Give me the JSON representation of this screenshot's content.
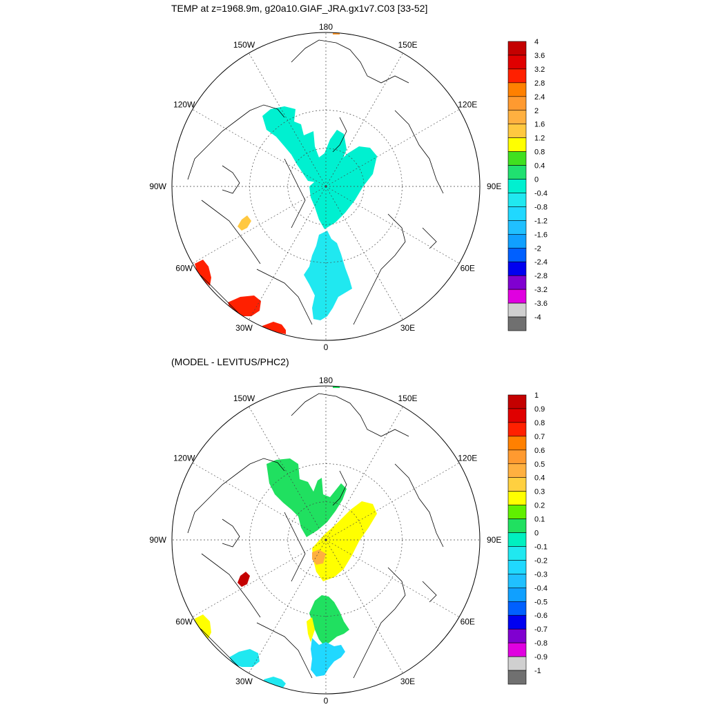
{
  "chart_data": [
    {
      "type": "heatmap",
      "projection": "north-polar-stereographic",
      "title": "TEMP at z=1968.9m, g20a10.GIAF_JRA.gx1v7.C03 [33-52]",
      "longitude_labels": [
        "180",
        "150E",
        "120E",
        "90E",
        "60E",
        "30E",
        "0",
        "30W",
        "60W",
        "90W",
        "120W",
        "150W"
      ],
      "colorbar": {
        "labels": [
          "4",
          "3.6",
          "3.2",
          "2.8",
          "2.4",
          "2",
          "1.6",
          "1.2",
          "0.8",
          "0.4",
          "0",
          "-0.4",
          "-0.8",
          "-1.2",
          "-1.6",
          "-2",
          "-2.4",
          "-2.8",
          "-3.2",
          "-3.6",
          "-4"
        ],
        "colors": [
          "#c40000",
          "#e00000",
          "#ff2000",
          "#ff8000",
          "#ff9a30",
          "#ffb040",
          "#ffc840",
          "#ffff00",
          "#40e020",
          "#20e070",
          "#00f0d0",
          "#20e8f0",
          "#20d8ff",
          "#20c0ff",
          "#10a0ff",
          "#0060ff",
          "#0000f0",
          "#8000d0",
          "#e000e0",
          "#d0d0d0",
          "#707070"
        ]
      }
    },
    {
      "type": "heatmap",
      "projection": "north-polar-stereographic",
      "title": "(MODEL - LEVITUS/PHC2)",
      "longitude_labels": [
        "180",
        "150E",
        "120E",
        "90E",
        "60E",
        "30E",
        "0",
        "30W",
        "60W",
        "90W",
        "120W",
        "150W"
      ],
      "colorbar": {
        "labels": [
          "1",
          "0.9",
          "0.8",
          "0.7",
          "0.6",
          "0.5",
          "0.4",
          "0.3",
          "0.2",
          "0.1",
          "0",
          "-0.1",
          "-0.2",
          "-0.3",
          "-0.4",
          "-0.5",
          "-0.6",
          "-0.7",
          "-0.8",
          "-0.9",
          "-1"
        ],
        "colors": [
          "#c40000",
          "#e00000",
          "#ff2000",
          "#ff8000",
          "#ff9a30",
          "#ffb040",
          "#ffd040",
          "#ffff00",
          "#60f000",
          "#20e060",
          "#00f0c0",
          "#20e8f0",
          "#20d8ff",
          "#20c0ff",
          "#10a0ff",
          "#0060ff",
          "#0000f0",
          "#8000d0",
          "#e000e0",
          "#d0d0d0",
          "#707070"
        ]
      }
    }
  ]
}
